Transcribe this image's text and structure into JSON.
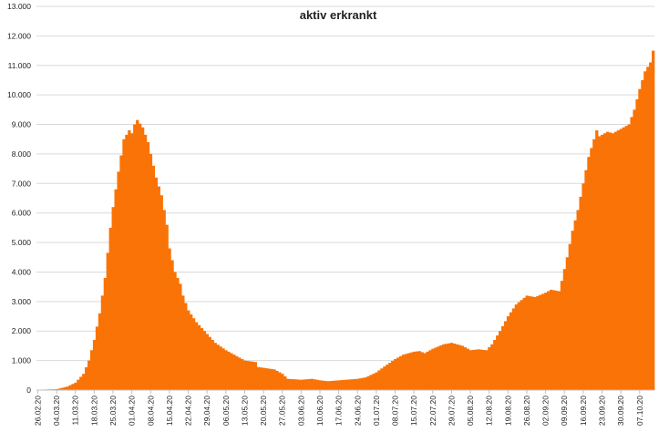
{
  "chart_data": {
    "type": "bar",
    "title": "aktiv erkrankt",
    "xlabel": "",
    "ylabel": "",
    "ylim": [
      0,
      13000
    ],
    "grid": true,
    "legend": "none",
    "bar_color": "#F97306",
    "grid_color": "#d9d9d9",
    "y_ticks": [
      "0",
      "1.000",
      "2.000",
      "3.000",
      "4.000",
      "5.000",
      "6.000",
      "7.000",
      "8.000",
      "9.000",
      "10.000",
      "11.000",
      "12.000",
      "13.000"
    ],
    "x_tick_labels": [
      "26.02.20",
      "04.03.20",
      "11.03.20",
      "18.03.20",
      "25.03.20",
      "01.04.20",
      "08.04.20",
      "15.04.20",
      "22.04.20",
      "29.04.20",
      "06.05.20",
      "13.05.20",
      "20.05.20",
      "27.05.20",
      "03.06.20",
      "10.06.20",
      "17.06.20",
      "24.06.20",
      "01.07.20",
      "08.07.20",
      "15.07.20",
      "22.07.20",
      "29.07.20",
      "05.08.20",
      "12.08.20",
      "19.08.20",
      "26.08.20",
      "02.09.20",
      "09.09.20",
      "16.09.20",
      "23.09.20",
      "30.09.20",
      "07.10.20"
    ],
    "x_start": "26.02.20",
    "x_end": "12.10.20",
    "anchors": [
      [
        "26.02.20",
        10
      ],
      [
        "04.03.20",
        30
      ],
      [
        "08.03.20",
        120
      ],
      [
        "11.03.20",
        250
      ],
      [
        "14.03.20",
        550
      ],
      [
        "16.03.20",
        1000
      ],
      [
        "18.03.20",
        1700
      ],
      [
        "20.03.20",
        2600
      ],
      [
        "22.03.20",
        3800
      ],
      [
        "24.03.20",
        5500
      ],
      [
        "25.03.20",
        6200
      ],
      [
        "27.03.20",
        7400
      ],
      [
        "29.03.20",
        8500
      ],
      [
        "31.03.20",
        8800
      ],
      [
        "01.04.20",
        8700
      ],
      [
        "02.04.20",
        9000
      ],
      [
        "03.04.20",
        9150
      ],
      [
        "05.04.20",
        8900
      ],
      [
        "07.04.20",
        8400
      ],
      [
        "08.04.20",
        8000
      ],
      [
        "10.04.20",
        7200
      ],
      [
        "12.04.20",
        6600
      ],
      [
        "14.04.20",
        5600
      ],
      [
        "15.04.20",
        4800
      ],
      [
        "17.04.20",
        4000
      ],
      [
        "19.04.20",
        3600
      ],
      [
        "20.04.20",
        3200
      ],
      [
        "22.04.20",
        2700
      ],
      [
        "25.04.20",
        2300
      ],
      [
        "29.04.20",
        1900
      ],
      [
        "02.05.20",
        1600
      ],
      [
        "06.05.20",
        1350
      ],
      [
        "10.05.20",
        1150
      ],
      [
        "13.05.20",
        1000
      ],
      [
        "17.05.20",
        950
      ],
      [
        "18.05.20",
        780
      ],
      [
        "24.05.20",
        700
      ],
      [
        "27.05.20",
        550
      ],
      [
        "29.05.20",
        380
      ],
      [
        "03.06.20",
        350
      ],
      [
        "07.06.20",
        380
      ],
      [
        "10.06.20",
        330
      ],
      [
        "13.06.20",
        300
      ],
      [
        "17.06.20",
        330
      ],
      [
        "24.06.20",
        380
      ],
      [
        "27.06.20",
        430
      ],
      [
        "01.07.20",
        600
      ],
      [
        "04.07.20",
        800
      ],
      [
        "08.07.20",
        1050
      ],
      [
        "11.07.20",
        1200
      ],
      [
        "15.07.20",
        1300
      ],
      [
        "17.07.20",
        1320
      ],
      [
        "19.07.20",
        1250
      ],
      [
        "22.07.20",
        1400
      ],
      [
        "26.07.20",
        1550
      ],
      [
        "29.07.20",
        1600
      ],
      [
        "02.08.20",
        1500
      ],
      [
        "05.08.20",
        1350
      ],
      [
        "08.08.20",
        1380
      ],
      [
        "11.08.20",
        1350
      ],
      [
        "13.08.20",
        1550
      ],
      [
        "16.08.20",
        2000
      ],
      [
        "19.08.20",
        2500
      ],
      [
        "22.08.20",
        2900
      ],
      [
        "26.08.20",
        3200
      ],
      [
        "29.08.20",
        3150
      ],
      [
        "02.09.20",
        3300
      ],
      [
        "04.09.20",
        3400
      ],
      [
        "07.09.20",
        3350
      ],
      [
        "08.09.20",
        3700
      ],
      [
        "10.09.20",
        4500
      ],
      [
        "12.09.20",
        5400
      ],
      [
        "14.09.20",
        6100
      ],
      [
        "16.09.20",
        7000
      ],
      [
        "18.09.20",
        7900
      ],
      [
        "20.09.20",
        8500
      ],
      [
        "21.09.20",
        8800
      ],
      [
        "22.09.20",
        8600
      ],
      [
        "25.09.20",
        8750
      ],
      [
        "27.09.20",
        8700
      ],
      [
        "30.09.20",
        8850
      ],
      [
        "03.10.20",
        9000
      ],
      [
        "05.10.20",
        9500
      ],
      [
        "07.10.20",
        10200
      ],
      [
        "09.10.20",
        10800
      ],
      [
        "11.10.20",
        11100
      ],
      [
        "12.10.20",
        11500
      ]
    ]
  }
}
